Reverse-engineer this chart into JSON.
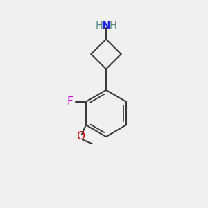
{
  "background_color": "#f0f0f0",
  "bond_color": "#3a3a3a",
  "N_color": "#2020dd",
  "H_color": "#5a8a8a",
  "F_color": "#cc00cc",
  "O_color": "#cc0000",
  "bond_width": 1.5,
  "figsize": [
    3.0,
    3.0
  ],
  "dpi": 100,
  "xlim": [
    0,
    10
  ],
  "ylim": [
    0,
    10
  ]
}
